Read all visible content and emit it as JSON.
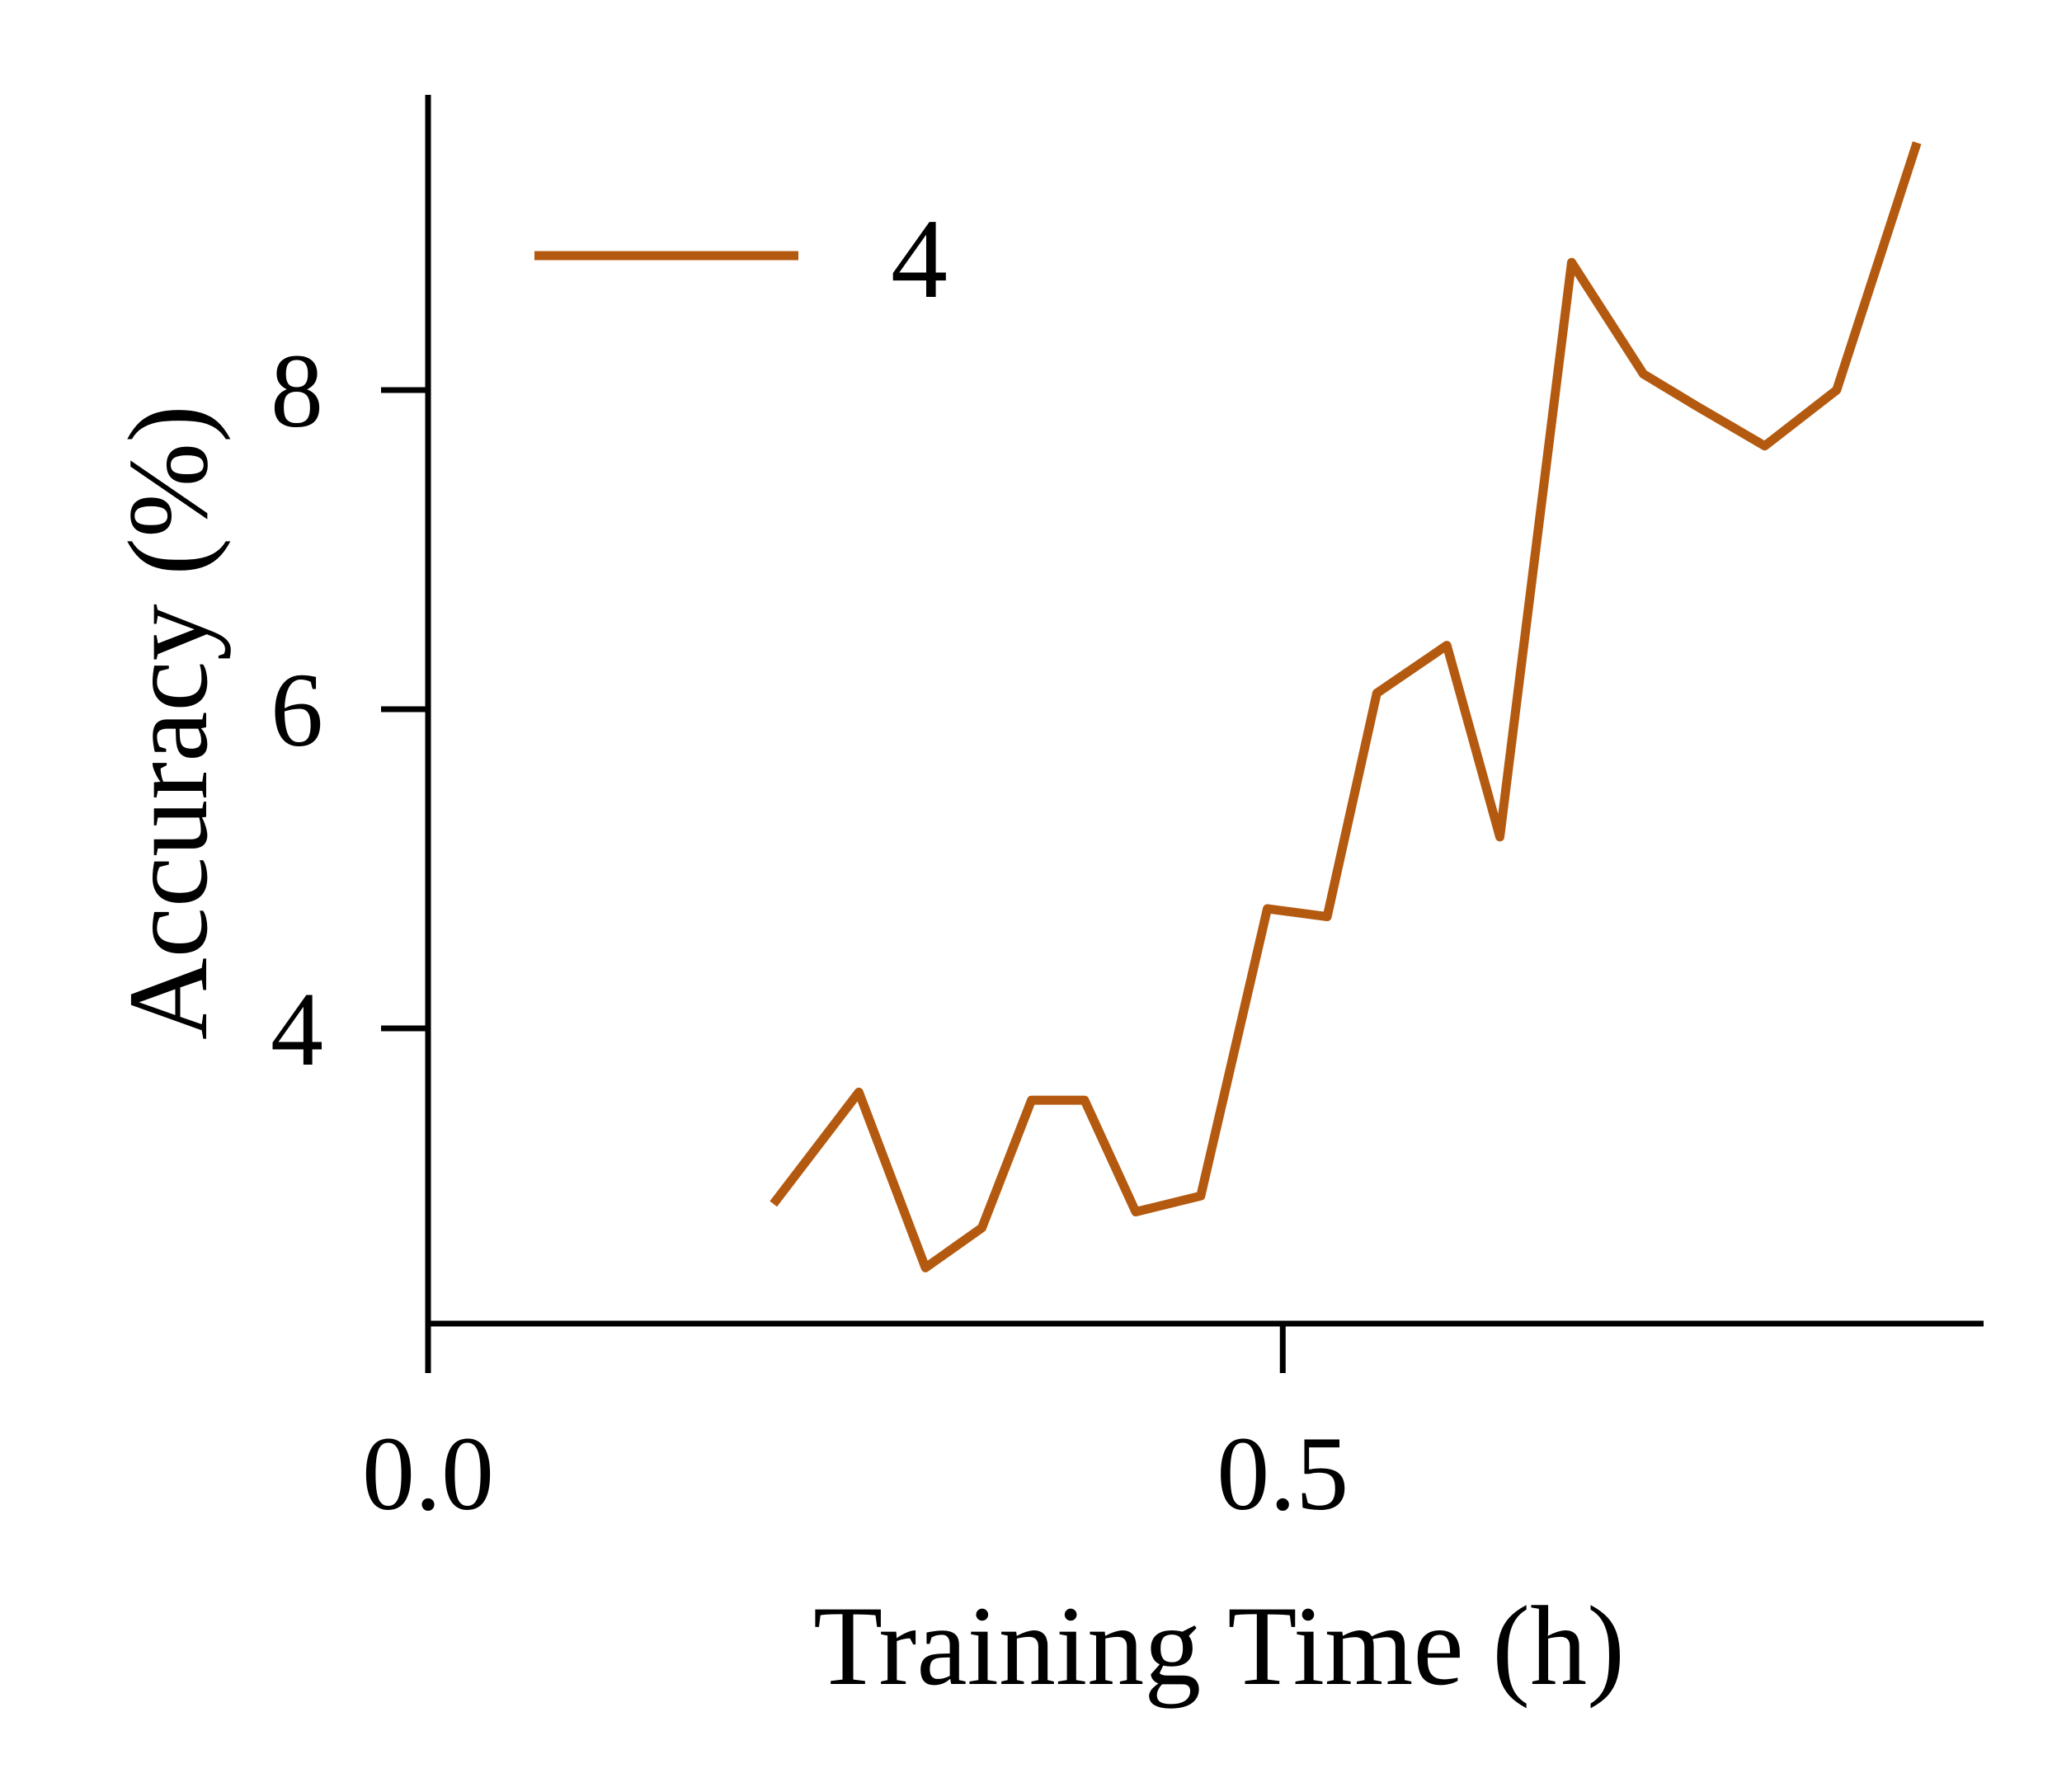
{
  "chart_data": {
    "type": "line",
    "title": "",
    "xlabel": "Training Time (h)",
    "ylabel": "Accuracy (%)",
    "xlim": [
      0.0,
      0.91
    ],
    "ylim": [
      2.15,
      9.85
    ],
    "x_ticks": [
      {
        "value": 0.0,
        "label": "0.0"
      },
      {
        "value": 0.5,
        "label": "0.5"
      }
    ],
    "y_ticks": [
      {
        "value": 4,
        "label": "4"
      },
      {
        "value": 6,
        "label": "6"
      },
      {
        "value": 8,
        "label": "8"
      }
    ],
    "grid": false,
    "legend": {
      "placement": "top-left"
    },
    "series": [
      {
        "name": "4",
        "color": "#b45a10",
        "x": [
          0.202,
          0.252,
          0.291,
          0.324,
          0.353,
          0.384,
          0.414,
          0.452,
          0.491,
          0.526,
          0.555,
          0.596,
          0.627,
          0.669,
          0.711,
          0.742,
          0.782,
          0.824,
          0.871
        ],
        "y": [
          2.9,
          3.6,
          2.5,
          2.75,
          3.55,
          3.55,
          2.85,
          2.95,
          4.75,
          4.7,
          6.1,
          6.4,
          5.2,
          8.8,
          8.1,
          7.9,
          7.65,
          8.0,
          9.55
        ]
      }
    ]
  }
}
